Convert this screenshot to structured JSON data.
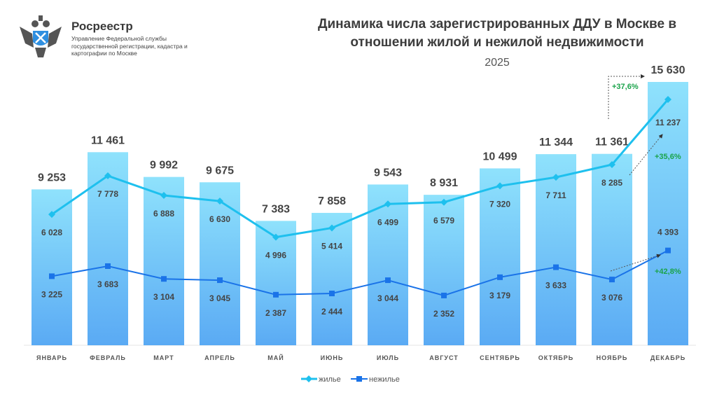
{
  "logo": {
    "brand": "Росреестр",
    "org": "Управление Федеральной службы государственной регистрации, кадастра и картографии по Москве"
  },
  "chart_data": {
    "type": "bar",
    "title": "Динамика числа зарегистрированных ДДУ в Москве в отношении жилой и нежилой недвижимости",
    "subtitle": "2025",
    "categories": [
      "ЯНВАРЬ",
      "ФЕВРАЛЬ",
      "МАРТ",
      "АПРЕЛЬ",
      "МАЙ",
      "ИЮНЬ",
      "ИЮЛЬ",
      "АВГУСТ",
      "СЕНТЯБРЬ",
      "ОКТЯБРЬ",
      "НОЯБРЬ",
      "ДЕКАБРЬ"
    ],
    "totals": [
      9253,
      11461,
      9992,
      9675,
      7383,
      7858,
      9543,
      8931,
      10499,
      11344,
      11361,
      15630
    ],
    "totals_labels": [
      "9 253",
      "11 461",
      "9 992",
      "9 675",
      "7 383",
      "7 858",
      "9 543",
      "8 931",
      "10 499",
      "11 344",
      "11 361",
      "15 630"
    ],
    "series": [
      {
        "name": "жилье",
        "type": "line",
        "color": "#1EC0EE",
        "values": [
          6028,
          7778,
          6888,
          6630,
          4996,
          5414,
          6499,
          6579,
          7320,
          7711,
          8285,
          11237
        ],
        "labels": [
          "6 028",
          "7 778",
          "6 888",
          "6 630",
          "4 996",
          "5 414",
          "6 499",
          "6 579",
          "7 320",
          "7 711",
          "8 285",
          "11 237"
        ]
      },
      {
        "name": "нежилье",
        "type": "line",
        "color": "#1A73E8",
        "values": [
          3225,
          3683,
          3104,
          3045,
          2387,
          2444,
          3044,
          2352,
          3179,
          3633,
          3076,
          4393
        ],
        "labels": [
          "3 225",
          "3 683",
          "3 104",
          "3 045",
          "2 387",
          "2 444",
          "3 044",
          "2 352",
          "3 179",
          "3 633",
          "3 076",
          "4 393"
        ]
      }
    ],
    "annotations": [
      {
        "text": "+37,6%",
        "target": "totals"
      },
      {
        "text": "+35,6%",
        "target": "жилье"
      },
      {
        "text": "+42,8%",
        "target": "нежилье"
      }
    ],
    "bar_colors": {
      "top": "#8FE2FC",
      "bottom": "#5AAAF4"
    },
    "annotation_color": "#1AA34A",
    "legend": "bottom",
    "grid": false
  }
}
